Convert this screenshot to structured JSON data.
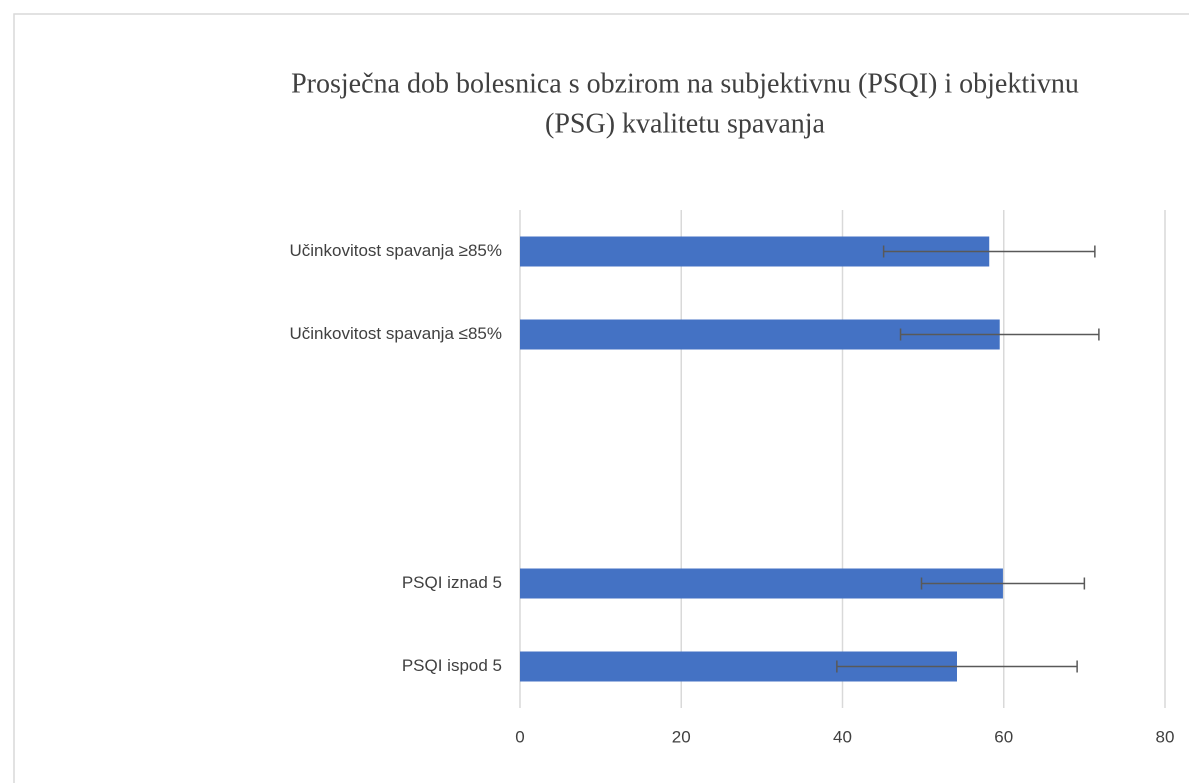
{
  "chart_data": {
    "type": "barh",
    "title": [
      "Prosječna dob bolesnica s obzirom na subjektivnu (PSQI) i objektivnu",
      "(PSG) kvalitetu spavanja"
    ],
    "categories": [
      "Učinkovitost spavanja ≥85%",
      "Učinkovitost spavanja ≤85%",
      null,
      null,
      "PSQI iznad 5",
      "PSQI ispod 5"
    ],
    "values": [
      58.2,
      59.5,
      null,
      null,
      59.9,
      54.2
    ],
    "errors": [
      13.1,
      12.3,
      null,
      null,
      10.1,
      14.9
    ],
    "color": "#4472c4",
    "xlim": [
      0,
      80
    ],
    "xticks": [
      0,
      20,
      40,
      60,
      80
    ],
    "grid": true
  }
}
